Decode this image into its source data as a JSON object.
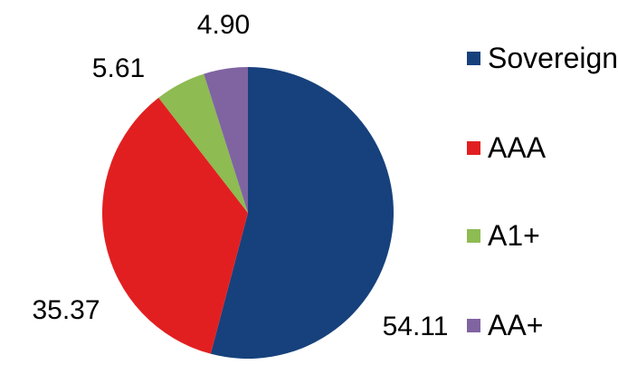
{
  "chart_data": {
    "type": "pie",
    "title": "",
    "categories": [
      "Sovereign",
      "AAA",
      "A1+",
      "AA+"
    ],
    "values": [
      54.11,
      35.37,
      5.61,
      4.9
    ],
    "slices": [
      {
        "label": "Sovereign",
        "value": 54.11,
        "display": "54.11",
        "color": "#17417C"
      },
      {
        "label": "AAA",
        "value": 35.37,
        "display": "35.37",
        "color": "#E21F20"
      },
      {
        "label": "A1+",
        "value": 5.61,
        "display": "5.61",
        "color": "#8EBB52"
      },
      {
        "label": "AA+",
        "value": 4.9,
        "display": "4.90",
        "color": "#8064A2"
      }
    ],
    "start_angle_deg": 0,
    "direction": "clockwise",
    "legend_position": "right",
    "data_labels": "outside",
    "background_color": "#FFFFFF",
    "text_color": "#000000"
  }
}
